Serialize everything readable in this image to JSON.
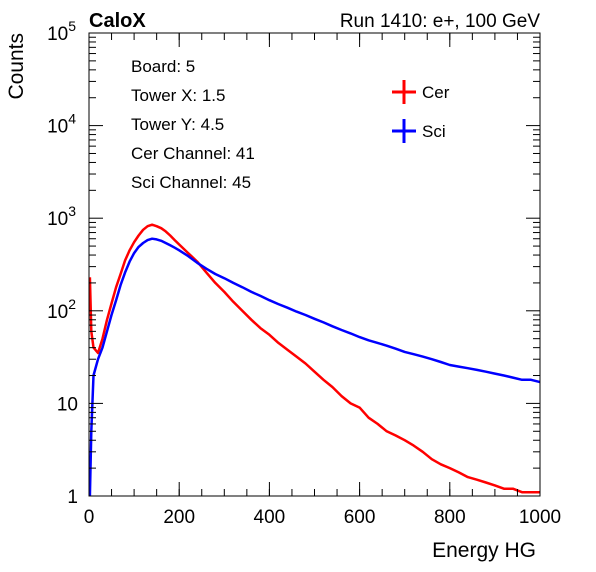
{
  "chart_data": {
    "type": "line",
    "title_left": "CaloX",
    "title_right": "Run 1410: e+, 100 GeV",
    "xlabel": "Energy HG",
    "ylabel": "Counts",
    "xlim": [
      0,
      1000
    ],
    "ylim": [
      1,
      100000
    ],
    "yscale": "log",
    "grid": false,
    "legend_position": "top-right",
    "x_ticks": [
      {
        "value": 0,
        "label": "0"
      },
      {
        "value": 200,
        "label": "200"
      },
      {
        "value": 400,
        "label": "400"
      },
      {
        "value": 600,
        "label": "600"
      },
      {
        "value": 800,
        "label": "800"
      },
      {
        "value": 1000,
        "label": "1000"
      }
    ],
    "y_ticks": [
      {
        "value": 1,
        "base": "1",
        "exp": ""
      },
      {
        "value": 10,
        "base": "10",
        "exp": ""
      },
      {
        "value": 100,
        "base": "10",
        "exp": "2"
      },
      {
        "value": 1000,
        "base": "10",
        "exp": "3"
      },
      {
        "value": 10000,
        "base": "10",
        "exp": "4"
      },
      {
        "value": 100000,
        "base": "10",
        "exp": "5"
      }
    ],
    "info_lines": [
      "Board: 5",
      "Tower X: 1.5",
      "Tower Y: 4.5",
      "Cer Channel: 41",
      "Sci Channel: 45"
    ],
    "series": [
      {
        "name": "Cer",
        "color": "#ff0000",
        "x": [
          2,
          5,
          10,
          20,
          30,
          40,
          50,
          60,
          70,
          80,
          90,
          100,
          110,
          120,
          130,
          140,
          150,
          160,
          170,
          180,
          190,
          200,
          220,
          240,
          260,
          280,
          300,
          320,
          340,
          360,
          380,
          400,
          420,
          440,
          460,
          480,
          500,
          520,
          540,
          560,
          580,
          600,
          620,
          640,
          660,
          680,
          700,
          720,
          740,
          760,
          780,
          800,
          820,
          840,
          860,
          880,
          900,
          920,
          940,
          960,
          980,
          1000
        ],
        "y": [
          230,
          60,
          40,
          35,
          50,
          80,
          120,
          180,
          250,
          350,
          450,
          550,
          650,
          750,
          820,
          850,
          820,
          780,
          720,
          650,
          580,
          520,
          420,
          340,
          260,
          200,
          160,
          125,
          100,
          80,
          65,
          55,
          45,
          38,
          32,
          27,
          22,
          18,
          15,
          12,
          10,
          9,
          7,
          6,
          5,
          4.5,
          4,
          3.5,
          3,
          2.5,
          2.2,
          2,
          1.8,
          1.6,
          1.5,
          1.4,
          1.3,
          1.2,
          1.2,
          1.1,
          1.1,
          1.1
        ]
      },
      {
        "name": "Sci",
        "color": "#0000ff",
        "x": [
          2,
          5,
          10,
          20,
          30,
          40,
          50,
          60,
          70,
          80,
          90,
          100,
          110,
          120,
          130,
          140,
          150,
          160,
          170,
          180,
          190,
          200,
          220,
          240,
          260,
          280,
          300,
          320,
          340,
          360,
          380,
          400,
          420,
          440,
          460,
          480,
          500,
          520,
          540,
          560,
          580,
          600,
          620,
          640,
          660,
          680,
          700,
          720,
          740,
          760,
          780,
          800,
          820,
          840,
          860,
          880,
          900,
          920,
          940,
          960,
          980,
          1000
        ],
        "y": [
          1,
          5,
          20,
          30,
          40,
          60,
          90,
          130,
          190,
          260,
          340,
          420,
          490,
          540,
          580,
          600,
          590,
          570,
          540,
          510,
          480,
          450,
          390,
          330,
          285,
          250,
          225,
          200,
          180,
          160,
          145,
          130,
          118,
          108,
          98,
          90,
          82,
          75,
          68,
          62,
          57,
          52,
          48,
          45,
          42,
          39,
          36,
          34,
          32,
          30,
          28,
          26,
          25,
          24,
          23,
          22,
          21,
          20,
          19,
          18,
          18,
          17
        ]
      }
    ]
  }
}
